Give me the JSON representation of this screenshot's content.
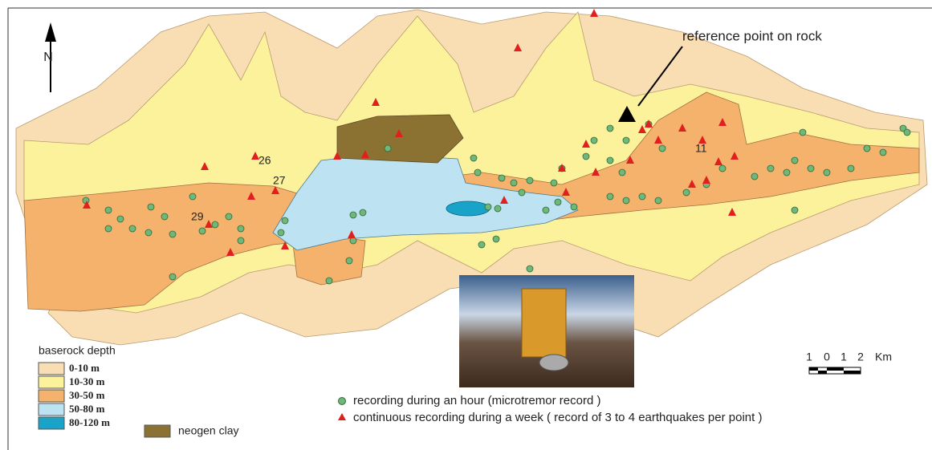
{
  "map": {
    "north": "N",
    "reference_label": "reference point on rock",
    "site_labels": [
      "26",
      "27",
      "29",
      "11"
    ],
    "legend": {
      "title": "baserock depth",
      "items": [
        "0-10 m",
        "10-30 m",
        "30-50 m",
        "50-80 m",
        "80-120 m"
      ],
      "clay": "neogen clay"
    },
    "scale": {
      "labels": [
        "1",
        "0",
        "1",
        "2"
      ],
      "unit": "Km"
    },
    "markers": {
      "microtremor": "recording during an hour (microtremor  record )",
      "earthquake": "continuous recording during a week ( record of 3 to 4 earthquakes per point )"
    }
  }
}
